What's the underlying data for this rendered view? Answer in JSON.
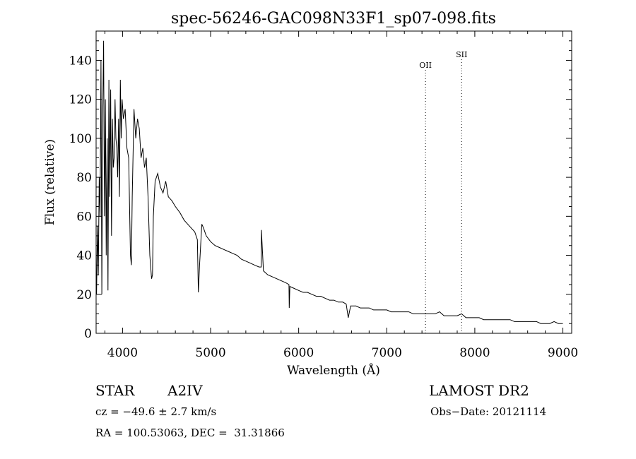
{
  "chart_data": {
    "type": "line",
    "title": "spec-56246-GAC098N33F1_sp07-098.fits",
    "xlabel": "Wavelength (Å)",
    "ylabel": "Flux (relative)",
    "xlim": [
      3700,
      9100
    ],
    "ylim": [
      0,
      155
    ],
    "xticks": [
      "4000",
      "5000",
      "6000",
      "7000",
      "8000",
      "9000"
    ],
    "yticks": [
      "0",
      "20",
      "40",
      "60",
      "80",
      "100",
      "120",
      "140"
    ],
    "grid": false,
    "series": [
      {
        "x": [
          3705,
          3715,
          3725,
          3735,
          3745,
          3755,
          3765,
          3775,
          3785,
          3795,
          3805,
          3815,
          3825,
          3835,
          3845,
          3855,
          3865,
          3875,
          3885,
          3895,
          3905,
          3915,
          3925,
          3935,
          3945,
          3955,
          3965,
          3975,
          3985,
          3995,
          4010,
          4030,
          4050,
          4070,
          4090,
          4100,
          4110,
          4130,
          4150,
          4170,
          4190,
          4210,
          4230,
          4250,
          4270,
          4290,
          4310,
          4330,
          4340,
          4350,
          4370,
          4400,
          4430,
          4460,
          4490,
          4520,
          4560,
          4600,
          4650,
          4700,
          4740,
          4780,
          4820,
          4850,
          4861,
          4875,
          4900,
          4920,
          4950,
          5000,
          5050,
          5100,
          5150,
          5200,
          5250,
          5300,
          5350,
          5400,
          5450,
          5500,
          5550,
          5575,
          5577,
          5600,
          5650,
          5700,
          5750,
          5800,
          5850,
          5890,
          5893,
          5900,
          5950,
          6000,
          6050,
          6100,
          6150,
          6200,
          6250,
          6300,
          6350,
          6400,
          6450,
          6500,
          6540,
          6563,
          6590,
          6620,
          6650,
          6700,
          6750,
          6800,
          6850,
          6900,
          6950,
          7000,
          7050,
          7100,
          7150,
          7200,
          7250,
          7300,
          7350,
          7400,
          7450,
          7500,
          7550,
          7600,
          7650,
          7700,
          7750,
          7800,
          7850,
          7900,
          7950,
          8000,
          8050,
          8100,
          8150,
          8200,
          8250,
          8300,
          8350,
          8400,
          8450,
          8500,
          8550,
          8600,
          8650,
          8700,
          8750,
          8800,
          8850,
          8900,
          8950,
          9000
        ],
        "y": [
          20,
          55,
          30,
          80,
          60,
          140,
          20,
          110,
          150,
          60,
          120,
          40,
          100,
          22,
          130,
          70,
          125,
          50,
          110,
          85,
          90,
          120,
          100,
          95,
          80,
          110,
          70,
          130,
          100,
          120,
          110,
          115,
          95,
          90,
          40,
          35,
          70,
          115,
          100,
          110,
          105,
          90,
          95,
          85,
          90,
          70,
          40,
          28,
          30,
          60,
          78,
          82,
          75,
          72,
          78,
          70,
          68,
          65,
          62,
          58,
          56,
          54,
          52,
          48,
          21,
          35,
          56,
          54,
          50,
          47,
          45,
          44,
          43,
          42,
          41,
          40,
          38,
          37,
          36,
          35,
          34,
          34,
          53,
          32,
          30,
          29,
          28,
          27,
          26,
          25,
          13,
          24,
          23,
          22,
          21,
          21,
          20,
          19,
          19,
          18,
          17,
          17,
          16,
          16,
          15,
          8,
          14,
          14,
          14,
          13,
          13,
          13,
          12,
          12,
          12,
          12,
          11,
          11,
          11,
          11,
          11,
          10,
          10,
          10,
          10,
          10,
          10,
          11,
          9,
          9,
          9,
          9,
          10,
          8,
          8,
          8,
          8,
          7,
          7,
          7,
          7,
          7,
          7,
          7,
          6,
          6,
          6,
          6,
          6,
          6,
          5,
          5,
          5,
          6,
          5,
          5
        ]
      }
    ],
    "annotations": [
      {
        "label": "OII",
        "x": 7440
      },
      {
        "label": "SII",
        "x": 7850
      }
    ]
  },
  "info": {
    "class": "STAR",
    "subclass": "A2IV",
    "survey": "LAMOST DR2",
    "cz": "cz = −49.6 ± 2.7 km/s",
    "obsdate": "Obs−Date: 20121114",
    "radec": "RA = 100.53063, DEC =  31.31866"
  }
}
